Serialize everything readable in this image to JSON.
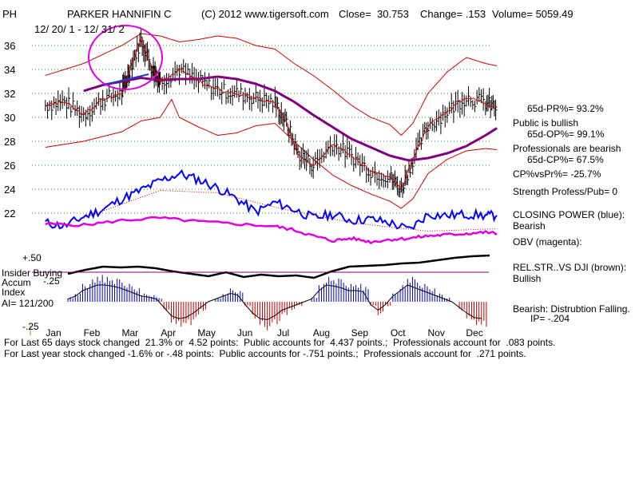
{
  "header": {
    "ticker": "PH",
    "name": "PARKER HANNIFIN C",
    "copyright": "(C) 2012 www.tigersoft.com",
    "close_label": "Close=  30.753",
    "change_label": "Change= .153",
    "volume_label": "Volume= 5059.49",
    "date_range": "12/ 20/ 1 - 12/ 31/ 2"
  },
  "colors": {
    "price": "#000000",
    "ma": "#800080",
    "bands": "#d00000",
    "closing_power": "#0000ff",
    "obv": "#e000e0",
    "circle": "#e000e0",
    "rel_str": "#000000",
    "accum_pos": "#0000c0",
    "accum_neg": "#c00000"
  },
  "right_panel": {
    "pr": "65d-PR%= 93.2%",
    "public": "Public is bullish",
    "op": "65d-OP%= 99.1%",
    "professionals": "Professionals are bearish",
    "cp": "65d-CP%= 67.5%",
    "cp_vs_pr": "CP%vsPr%= -25.7%",
    "strength": "Strength Profess/Pub= 0",
    "closing_power_label": "CLOSING POWER (blue):",
    "closing_power_value": "Bearish",
    "obv_label": "OBV (magenta):",
    "rel_str_label": "REL.STR..VS DJI (brown):",
    "rel_str_value": "Bullish",
    "bearish_label": "Bearish: Distrubtion Falling.",
    "ip": "IP= -.204"
  },
  "left_labels": {
    "plus50": "+.50",
    "insider": "Insider Buying",
    "accum": "Accum",
    "minus25a": "-.25",
    "index": "Index",
    "ai": "AI= 121/200",
    "minus25b": "-.25"
  },
  "footer": {
    "line1": "For Last 65 days stock changed  21.3% or  4.52 points:  Public accounts for  4.437 points.;  Professionals account for  .083 points.",
    "line2": "For Last year stock changed -1.6% or -.48 points:  Public accounts for -.751 points.;  Professionals account for  .271 points."
  },
  "chart_data": {
    "type": "line",
    "title": "PARKER HANNIFIN C",
    "xlabel": "",
    "ylabel": "",
    "months": [
      "Jan",
      "Feb",
      "Mar",
      "Apr",
      "May",
      "Jun",
      "Jul",
      "Aug",
      "Sep",
      "Oct",
      "Nov",
      "Dec"
    ],
    "yticks": [
      22,
      24,
      26,
      28,
      30,
      32,
      34,
      36
    ],
    "ylim": [
      20.5,
      37
    ],
    "grid": true,
    "series": [
      {
        "name": "Price (close)",
        "x": [
          0,
          0.5,
          1,
          1.5,
          2,
          2.2,
          2.5,
          2.8,
          3,
          3.5,
          4,
          4.5,
          5,
          5.5,
          6,
          6.3,
          6.6,
          7,
          7.5,
          8,
          8.5,
          9,
          9.3,
          9.6,
          10,
          10.5,
          11,
          11.5,
          11.8
        ],
        "values": [
          31,
          31.3,
          30.2,
          31.5,
          32,
          34,
          36.5,
          34,
          33,
          34,
          33,
          32.3,
          32,
          31.6,
          31.2,
          29.5,
          27,
          26,
          27.8,
          26.8,
          25.5,
          25,
          24,
          26.5,
          29.3,
          30.5,
          31.7,
          31.2,
          30.8
        ]
      },
      {
        "name": "Moving average",
        "x": [
          1,
          1.5,
          2,
          2.5,
          3,
          3.5,
          4,
          4.5,
          5,
          5.5,
          6,
          6.5,
          7,
          7.5,
          8,
          8.5,
          9,
          9.5,
          10,
          10.5,
          11,
          11.5,
          11.8
        ],
        "values": [
          32.2,
          32.7,
          33,
          33.3,
          33.1,
          33.2,
          33.2,
          33.4,
          33.2,
          32.8,
          32.2,
          31.3,
          30.2,
          29.2,
          28.2,
          27.5,
          26.8,
          26.4,
          26.6,
          27,
          27.6,
          28.5,
          29.1
        ]
      },
      {
        "name": "Upper band",
        "x": [
          0,
          1,
          2,
          2.5,
          3,
          3.5,
          4,
          4.5,
          5,
          5.5,
          6,
          6.5,
          7,
          7.5,
          8,
          8.5,
          9,
          9.3,
          9.6,
          10,
          10.5,
          11,
          11.5,
          11.8
        ],
        "values": [
          33.5,
          34.5,
          36,
          37,
          36.8,
          36.3,
          36.5,
          36.8,
          36.6,
          36,
          35.7,
          34.5,
          33.5,
          32.3,
          31,
          30,
          29.4,
          28.5,
          29.5,
          32,
          33.8,
          35,
          34.5,
          34.3
        ]
      },
      {
        "name": "Lower band",
        "x": [
          0,
          1,
          2,
          2.5,
          3,
          3.3,
          3.5,
          4,
          4.5,
          5,
          5.5,
          6,
          6.5,
          7,
          7.5,
          8,
          8.5,
          9,
          9.3,
          9.6,
          10,
          10.5,
          11,
          11.5,
          11.8
        ],
        "values": [
          27.5,
          28,
          28.8,
          29.7,
          30,
          31.5,
          30,
          29.2,
          28.5,
          28.7,
          29.3,
          29.5,
          28,
          26.5,
          25.2,
          24.3,
          23.6,
          23,
          22.4,
          23.2,
          25.3,
          26.5,
          27.2,
          27.4,
          27.3
        ]
      },
      {
        "name": "Closing Power",
        "x": [
          0,
          0.5,
          1,
          1.5,
          2,
          2.5,
          3,
          3.5,
          4,
          4.5,
          5,
          5.5,
          6,
          6.5,
          7,
          7.5,
          8,
          8.5,
          9,
          9.5,
          10,
          10.5,
          11,
          11.5,
          11.8
        ],
        "values": [
          21.2,
          20.9,
          21.7,
          22.3,
          23.2,
          23.9,
          24.7,
          25.3,
          24.8,
          24.1,
          23.2,
          22.1,
          22.9,
          22.3,
          21.6,
          21.9,
          21.4,
          21.5,
          21.2,
          20.6,
          21.9,
          21.8,
          21.9,
          21.8,
          21.8
        ]
      },
      {
        "name": "OBV",
        "x": [
          0,
          1,
          2,
          3,
          4,
          5,
          6,
          6.5,
          7,
          7.5,
          8,
          8.5,
          9,
          9.5,
          10,
          10.5,
          11,
          11.5,
          11.8
        ],
        "values": [
          21.1,
          21,
          21.4,
          21.6,
          21.3,
          21.1,
          20.9,
          20.6,
          20.1,
          19.7,
          19.9,
          19.6,
          19.8,
          19.9,
          20.1,
          20.2,
          20.3,
          20.4,
          20.3
        ]
      }
    ]
  }
}
